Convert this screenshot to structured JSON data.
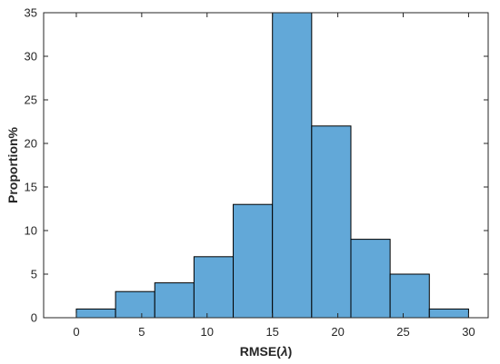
{
  "chart_data": {
    "type": "bar",
    "title": "",
    "xlabel_prefix": "RMSE(",
    "xlabel_symbol": "λ",
    "xlabel_suffix": ")",
    "ylabel": "Proportion%",
    "xlim": [
      -2.5,
      31.5
    ],
    "ylim": [
      0,
      35
    ],
    "xticks": [
      0,
      5,
      10,
      15,
      20,
      25,
      30
    ],
    "yticks": [
      0,
      5,
      10,
      15,
      20,
      25,
      30,
      35
    ],
    "bin_edges": [
      0,
      3,
      6,
      9,
      12,
      15,
      18,
      21,
      24,
      27,
      30
    ],
    "values": [
      1,
      3,
      4,
      7,
      13,
      35,
      22,
      9,
      5,
      1
    ],
    "bar_color": "#62a8d8",
    "edge_color": "#000000",
    "grid": false,
    "box": true
  }
}
